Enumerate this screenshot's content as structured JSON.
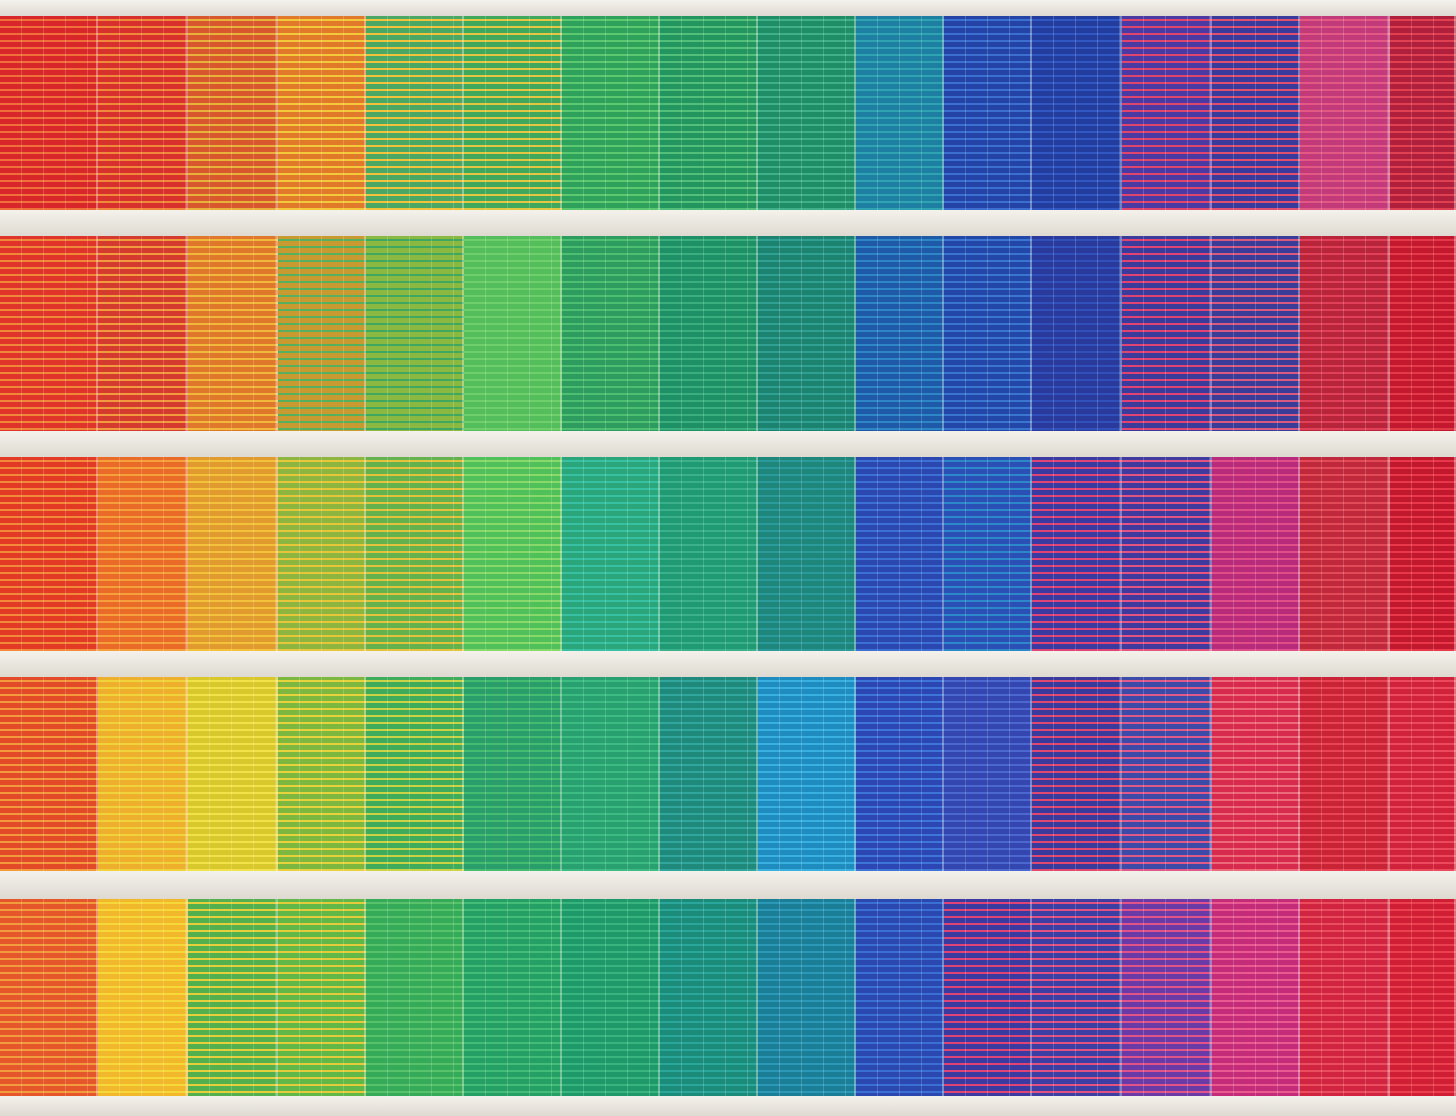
{
  "scene": {
    "subject": "building-facade-with-colored-window-blinds",
    "slab_color": "#ebe8e1",
    "floors": [
      {
        "name": "floor-1",
        "panels": [
          [
            "#d8262b",
            "#f0703a"
          ],
          [
            "#d8302c",
            "#f08a3a"
          ],
          [
            "#d9572c",
            "#e8b23a"
          ],
          [
            "#e07a2a",
            "#f3c83b"
          ],
          [
            "#4aa864",
            "#f2c23a"
          ],
          [
            "#3fa85c",
            "#e4c640"
          ],
          [
            "#2ea25a",
            "#5cc870"
          ],
          [
            "#22965e",
            "#52c07a"
          ],
          [
            "#1f8e66",
            "#3fb08a"
          ],
          [
            "#1d7fa2",
            "#2fa3b2"
          ],
          [
            "#2344a6",
            "#3b6fd0"
          ],
          [
            "#233d9e",
            "#3157c2"
          ],
          [
            "#4c3aa4",
            "#e0456c"
          ],
          [
            "#3a3a9c",
            "#e0506e"
          ],
          [
            "#c23a7a",
            "#e25a84"
          ],
          [
            "#b01f3c",
            "#e04050"
          ]
        ]
      },
      {
        "name": "floor-2",
        "panels": [
          [
            "#e0342a",
            "#f0883a"
          ],
          [
            "#d53a2e",
            "#f29b3e"
          ],
          [
            "#e0782c",
            "#f2b83b"
          ],
          [
            "#c89a30",
            "#55b060"
          ],
          [
            "#8ab840",
            "#3ea860"
          ],
          [
            "#54bd5c",
            "#6fcf6a"
          ],
          [
            "#2d9c5e",
            "#4cbf70"
          ],
          [
            "#1d9065",
            "#3aae7c"
          ],
          [
            "#1c8370",
            "#2fa092"
          ],
          [
            "#1f5aa8",
            "#2f86c6"
          ],
          [
            "#2347a8",
            "#3a76d0"
          ],
          [
            "#2a3a9c",
            "#3050bc"
          ],
          [
            "#3a3b9a",
            "#e24472"
          ],
          [
            "#3a3c98",
            "#d85a80"
          ],
          [
            "#b8243a",
            "#e04058"
          ],
          [
            "#c4182e",
            "#e23a48"
          ]
        ]
      },
      {
        "name": "floor-3",
        "panels": [
          [
            "#e23a24",
            "#f28a3a"
          ],
          [
            "#ea6a28",
            "#f6a03c"
          ],
          [
            "#e09a2e",
            "#f4c23a"
          ],
          [
            "#8db640",
            "#e8c63a"
          ],
          [
            "#64b24e",
            "#e4c23c"
          ],
          [
            "#4fc05a",
            "#88d86a"
          ],
          [
            "#2ba67a",
            "#38c0a2"
          ],
          [
            "#1f9a72",
            "#3cb08a"
          ],
          [
            "#1e867a",
            "#2a9a9a"
          ],
          [
            "#2a48b0",
            "#3c70d4"
          ],
          [
            "#2a50b6",
            "#2c88c8"
          ],
          [
            "#3a3aa0",
            "#e04474"
          ],
          [
            "#40399e",
            "#e45480"
          ],
          [
            "#b82a7a",
            "#e04e88"
          ],
          [
            "#c0283c",
            "#e24a58"
          ],
          [
            "#c2182e",
            "#e8384a"
          ]
        ]
      },
      {
        "name": "floor-4",
        "panels": [
          [
            "#e24a28",
            "#f29a3c"
          ],
          [
            "#eeb02c",
            "#f0d23a"
          ],
          [
            "#d8c82c",
            "#f2e24a"
          ],
          [
            "#7cb840",
            "#e8d23c"
          ],
          [
            "#3fac5c",
            "#cbd244"
          ],
          [
            "#2a9e6a",
            "#46bc70"
          ],
          [
            "#28a070",
            "#3cbc82"
          ],
          [
            "#1f8a7c",
            "#30a69c"
          ],
          [
            "#1f8cc0",
            "#38b0e0"
          ],
          [
            "#2c46b4",
            "#3e76d8"
          ],
          [
            "#3446b0",
            "#4a68d0"
          ],
          [
            "#3a3a9c",
            "#e04870"
          ],
          [
            "#3e4aa8",
            "#e05a88"
          ],
          [
            "#d82a4c",
            "#ec6a7a"
          ],
          [
            "#c82436",
            "#e84456"
          ],
          [
            "#d0223a",
            "#ec4a5c"
          ]
        ]
      },
      {
        "name": "floor-5",
        "panels": [
          [
            "#e5572a",
            "#f29c3e"
          ],
          [
            "#f0b82a",
            "#f6d83a"
          ],
          [
            "#52b04e",
            "#e6cf3a"
          ],
          [
            "#60b848",
            "#e4cb3c"
          ],
          [
            "#35aa58",
            "#58c26a"
          ],
          [
            "#24a064",
            "#42bc76"
          ],
          [
            "#1e9a6a",
            "#3ab47e"
          ],
          [
            "#1c8c7a",
            "#2aa69a"
          ],
          [
            "#1a7e96",
            "#2c98b8"
          ],
          [
            "#2a48b0",
            "#3a70d4"
          ],
          [
            "#3a3aa0",
            "#e04474"
          ],
          [
            "#3c3ea4",
            "#e25280"
          ],
          [
            "#6a3aa6",
            "#e25488"
          ],
          [
            "#c42c7a",
            "#e85a90"
          ],
          [
            "#d02440",
            "#ea4e5e"
          ],
          [
            "#d01e34",
            "#ea4050"
          ]
        ]
      }
    ]
  }
}
